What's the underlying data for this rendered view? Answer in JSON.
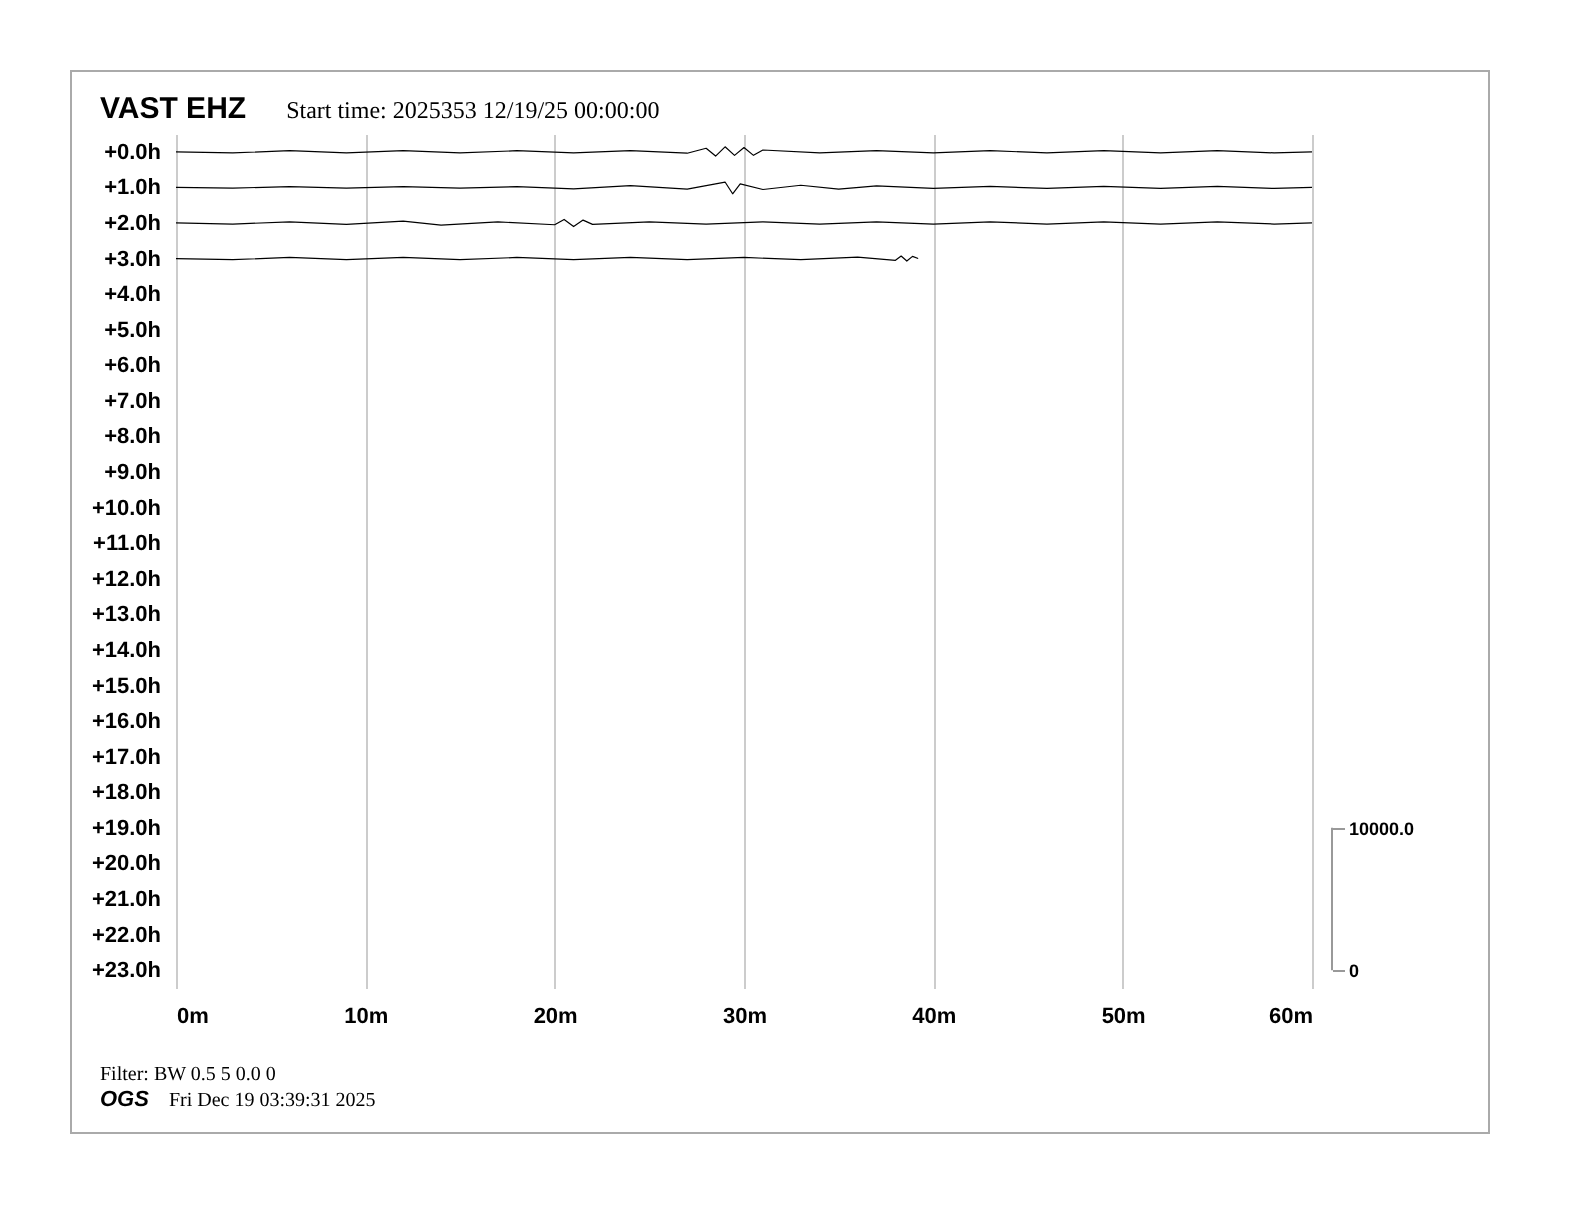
{
  "chart_data": {
    "type": "line",
    "title": "VAST EHZ",
    "subtitle": "Start time: 2025353 12/19/25 00:00:00",
    "annotations": [
      "Filter: BW 0.5 5 0.0 0",
      "OGS",
      "Fri Dec 19 03:39:31 2025"
    ],
    "xlim": [
      0,
      60
    ],
    "xticks": [
      {
        "value": 0,
        "label": "0m"
      },
      {
        "value": 10,
        "label": "10m"
      },
      {
        "value": 20,
        "label": "20m"
      },
      {
        "value": 30,
        "label": "30m"
      },
      {
        "value": 40,
        "label": "40m"
      },
      {
        "value": 50,
        "label": "50m"
      },
      {
        "value": 60,
        "label": "60m"
      }
    ],
    "ylim": [
      23.5,
      -0.5
    ],
    "yticks": [
      {
        "value": 0,
        "label": "+0.0h"
      },
      {
        "value": 1,
        "label": "+1.0h"
      },
      {
        "value": 2,
        "label": "+2.0h"
      },
      {
        "value": 3,
        "label": "+3.0h"
      },
      {
        "value": 4,
        "label": "+4.0h"
      },
      {
        "value": 5,
        "label": "+5.0h"
      },
      {
        "value": 6,
        "label": "+6.0h"
      },
      {
        "value": 7,
        "label": "+7.0h"
      },
      {
        "value": 8,
        "label": "+8.0h"
      },
      {
        "value": 9,
        "label": "+9.0h"
      },
      {
        "value": 10,
        "label": "+10.0h"
      },
      {
        "value": 11,
        "label": "+11.0h"
      },
      {
        "value": 12,
        "label": "+12.0h"
      },
      {
        "value": 13,
        "label": "+13.0h"
      },
      {
        "value": 14,
        "label": "+14.0h"
      },
      {
        "value": 15,
        "label": "+15.0h"
      },
      {
        "value": 16,
        "label": "+16.0h"
      },
      {
        "value": 17,
        "label": "+17.0h"
      },
      {
        "value": 18,
        "label": "+18.0h"
      },
      {
        "value": 19,
        "label": "+19.0h"
      },
      {
        "value": 20,
        "label": "+20.0h"
      },
      {
        "value": 21,
        "label": "+21.0h"
      },
      {
        "value": 22,
        "label": "+22.0h"
      },
      {
        "value": 23,
        "label": "+23.0h"
      }
    ],
    "y2lim": [
      -1250,
      58750
    ],
    "y2ticks": [
      0,
      {
        "value": 10000,
        "label": "10000.0"
      }
    ],
    "grid": "x",
    "series": [
      {
        "color": "#000000",
        "x": [
          0,
          3,
          6,
          9,
          12,
          15,
          18,
          21,
          24,
          27,
          28,
          28.5,
          29,
          29.5,
          30,
          30.5,
          31,
          34,
          37,
          40,
          43,
          46,
          49,
          52,
          55,
          58,
          60
        ],
        "values": [
          0,
          0.03,
          -0.03,
          0.03,
          -0.03,
          0.03,
          -0.03,
          0.03,
          -0.03,
          0.04,
          -0.1,
          0.12,
          -0.14,
          0.1,
          -0.12,
          0.1,
          -0.05,
          0.03,
          -0.03,
          0.03,
          -0.03,
          0.03,
          -0.03,
          0.03,
          -0.03,
          0.03,
          0
        ]
      },
      {
        "color": "#000000",
        "x": [
          0,
          3,
          6,
          9,
          12,
          15,
          18,
          21,
          24,
          27,
          29,
          29.4,
          29.8,
          31,
          33,
          35,
          37,
          40,
          43,
          46,
          49,
          52,
          55,
          58,
          60
        ],
        "values": [
          1,
          1.02,
          0.98,
          1.02,
          0.98,
          1.02,
          0.98,
          1.04,
          0.95,
          1.05,
          0.85,
          1.18,
          0.9,
          1.06,
          0.94,
          1.05,
          0.96,
          1.03,
          0.97,
          1.03,
          0.97,
          1.03,
          0.97,
          1.03,
          1
        ]
      },
      {
        "color": "#000000",
        "x": [
          0,
          3,
          6,
          9,
          12,
          14,
          17,
          20,
          20.5,
          21,
          21.5,
          22,
          25,
          28,
          31,
          34,
          37,
          40,
          43,
          46,
          49,
          52,
          55,
          58,
          60
        ],
        "values": [
          2,
          2.03,
          1.97,
          2.04,
          1.95,
          2.06,
          1.97,
          2.05,
          1.9,
          2.1,
          1.92,
          2.04,
          1.97,
          2.03,
          1.97,
          2.03,
          1.97,
          2.03,
          1.97,
          2.03,
          1.97,
          2.03,
          1.97,
          2.03,
          2
        ]
      },
      {
        "color": "#000000",
        "x": [
          0,
          3,
          6,
          9,
          12,
          15,
          18,
          21,
          24,
          27,
          30,
          33,
          36,
          38,
          38.3,
          38.6,
          38.9,
          39.2
        ],
        "values": [
          3,
          3.03,
          2.97,
          3.03,
          2.97,
          3.03,
          2.97,
          3.03,
          2.97,
          3.03,
          2.97,
          3.03,
          2.96,
          3.05,
          2.93,
          3.07,
          2.94,
          3
        ]
      }
    ]
  }
}
